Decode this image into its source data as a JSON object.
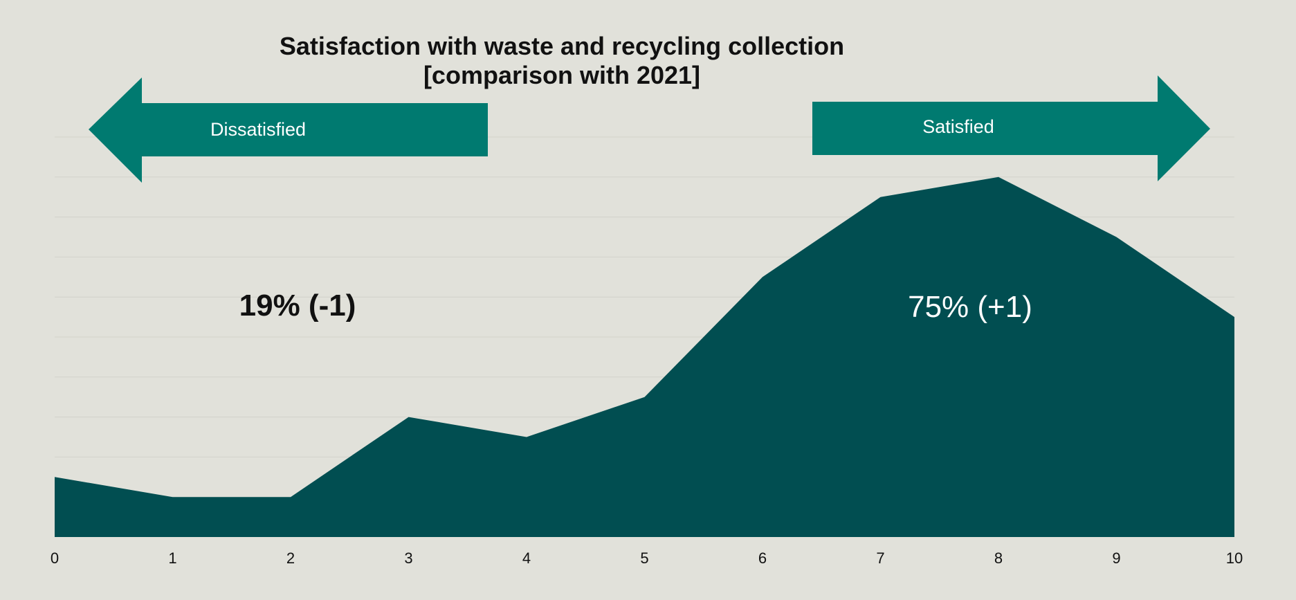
{
  "chart_data": {
    "type": "area",
    "title_line1": "Satisfaction with waste and recycling collection",
    "title_line2": "[comparison with 2021]",
    "x": [
      0,
      1,
      2,
      3,
      4,
      5,
      6,
      7,
      8,
      9,
      10
    ],
    "x_tick_labels": [
      "0",
      "1",
      "2",
      "3",
      "4",
      "5",
      "6",
      "7",
      "8",
      "9",
      "10"
    ],
    "values": [
      3,
      2,
      2,
      6,
      5,
      7,
      13,
      17,
      18,
      15,
      11
    ],
    "ylim": [
      0,
      20
    ],
    "y_gridlines": true,
    "y_tick_labels_shown": false,
    "arrows": {
      "left_label": "Dissatisfied",
      "right_label": "Satisfied"
    },
    "annotations": {
      "dissatisfied": "19% (-1)",
      "satisfied": "75% (+1)"
    },
    "colors": {
      "background": "#e1e1da",
      "area_fill": "#014e51",
      "arrow_fill": "#007a70",
      "gridline": "#d2d2cb"
    }
  }
}
